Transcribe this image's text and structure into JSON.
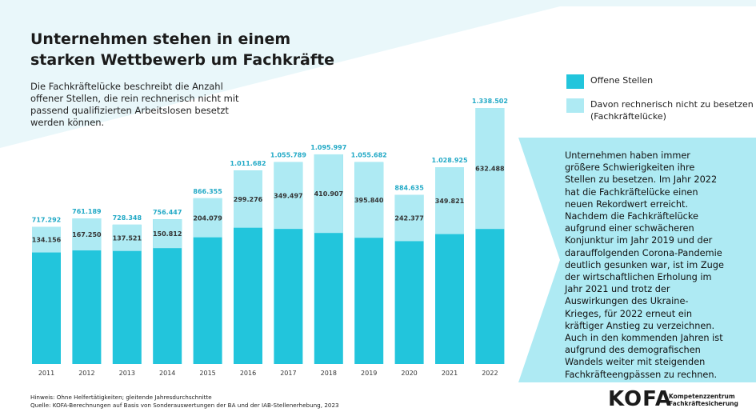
{
  "title": "Unternehmen stehen in einem\nstarken Wettbewerb um Fachkräfte",
  "description": "Die Fachkräftelücke beschreibt die Anzahl\noffener Stellen, die rein rechnerisch nicht mit\npassend qualifizierten Arbeitslosen besetzt\nwerden können.",
  "sidebar_text": "Unternehmen haben immer größere Schwierigkeiten ihre Stellen zu besetzen. Im Jahr 2022 hat die Fachkräftelücke einen neuen Rekordwert erreicht. Nachdem die Fachkräftelücke aufgrund einer schwächeren Konjunktur im Jahr 2019 und der darauffolgenden Corona-Pandemie deutlich gesunken war, ist im Zuge der wirtschaftlichen Erholung im Jahr 2021 und trotz der Auswirkungen des Ukraine-Krieges, für 2022 erneut ein kräftiger Anstieg zu verzeichnen. Auch in den kommenden Jahren ist aufgrund des demografischen Wandels weiter mit steigenden Fachkräfteengpässen zu rechnen.",
  "notes": [
    "Hinweis: Ohne Helfertätigkeiten; gleitende Jahresdurchschnitte",
    "Quelle: KOFA-Berechnungen auf Basis von Sonderauswertungen der BA und der IAB-Stellenerhebung, 2023"
  ],
  "logo": {
    "name": "KOFA",
    "subtitle": "Kompetenzzentrum\nFachkräftesicherung"
  },
  "chart_data": {
    "type": "bar",
    "categories": [
      "2011",
      "2012",
      "2013",
      "2014",
      "2015",
      "2016",
      "2017",
      "2018",
      "2019",
      "2020",
      "2021",
      "2022"
    ],
    "series": [
      {
        "name": "Offene Stellen",
        "color": "#22c5dc",
        "values": [
          717292,
          761189,
          728348,
          756447,
          866355,
          1011682,
          1055789,
          1095997,
          1055682,
          884635,
          1028925,
          1338502
        ],
        "value_labels": [
          "717.292",
          "761.189",
          "728.348",
          "756.447",
          "866.355",
          "1.011.682",
          "1.055.789",
          "1.095.997",
          "1.055.682",
          "884.635",
          "1.028.925",
          "1.338.502"
        ]
      },
      {
        "name": "Davon rechnerisch nicht zu besetzen\n(Fachkräftelücke)",
        "color": "#aeeaf3",
        "values": [
          134156,
          167250,
          137521,
          150812,
          204079,
          299276,
          349497,
          410907,
          395840,
          242377,
          349821,
          632488
        ],
        "value_labels": [
          "134.156",
          "167.250",
          "137.521",
          "150.812",
          "204.079",
          "299.276",
          "349.497",
          "410.907",
          "395.840",
          "242.377",
          "349.821",
          "632.488"
        ]
      }
    ]
  }
}
